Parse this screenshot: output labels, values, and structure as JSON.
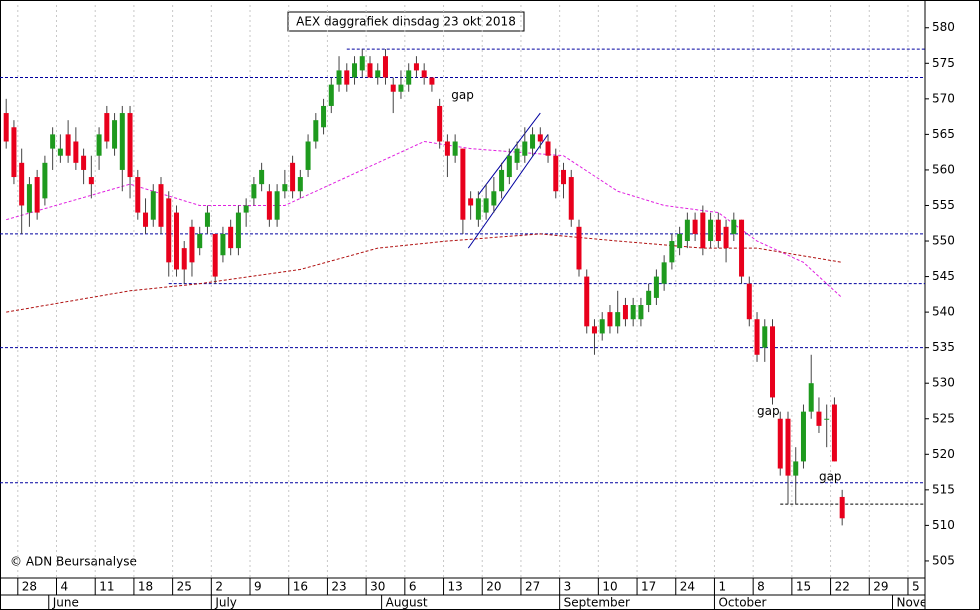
{
  "chart_data": {
    "type": "candlestick",
    "title": "AEX daggrafiek dinsdag 23 okt 2018",
    "credit": "© ADN Beursanalyse",
    "up_color": "#1e9a1e",
    "down_color": "#e8001c",
    "grid": true,
    "ylim": [
      502.6,
      583.2
    ],
    "yticks": [
      505,
      510,
      515,
      520,
      525,
      530,
      535,
      540,
      545,
      550,
      555,
      560,
      565,
      570,
      575,
      580
    ],
    "xlim": [
      -0.8,
      118.7
    ],
    "xticks": [
      {
        "value": 2,
        "label": "28"
      },
      {
        "value": 7,
        "label": "4"
      },
      {
        "value": 12,
        "label": "11"
      },
      {
        "value": 17,
        "label": "18"
      },
      {
        "value": 22,
        "label": "25"
      },
      {
        "value": 27,
        "label": "2"
      },
      {
        "value": 32,
        "label": "9"
      },
      {
        "value": 37,
        "label": "16"
      },
      {
        "value": 42,
        "label": "23"
      },
      {
        "value": 47,
        "label": "30"
      },
      {
        "value": 52,
        "label": "6"
      },
      {
        "value": 57,
        "label": "13"
      },
      {
        "value": 62,
        "label": "20"
      },
      {
        "value": 67,
        "label": "27"
      },
      {
        "value": 72,
        "label": "3"
      },
      {
        "value": 77,
        "label": "10"
      },
      {
        "value": 82,
        "label": "17"
      },
      {
        "value": 87,
        "label": "24"
      },
      {
        "value": 92,
        "label": "1"
      },
      {
        "value": 97,
        "label": "8"
      },
      {
        "value": 102,
        "label": "15"
      },
      {
        "value": 107,
        "label": "22"
      },
      {
        "value": 112,
        "label": "29"
      },
      {
        "value": 117,
        "label": "5"
      }
    ],
    "months": [
      {
        "value": 6,
        "label": "June"
      },
      {
        "value": 27,
        "label": "July"
      },
      {
        "value": 49,
        "label": "August"
      },
      {
        "value": 72,
        "label": "September"
      },
      {
        "value": 92,
        "label": "October"
      },
      {
        "value": 115,
        "label": "November"
      }
    ],
    "candles": [
      [
        568,
        570,
        563,
        564
      ],
      [
        566,
        567,
        558,
        559
      ],
      [
        561,
        563,
        551,
        555
      ],
      [
        554,
        559,
        552,
        558
      ],
      [
        559,
        560,
        553,
        554
      ],
      [
        556,
        562,
        555,
        561
      ],
      [
        563,
        566,
        560,
        565
      ],
      [
        562,
        565,
        561,
        563
      ],
      [
        565,
        567,
        561,
        562
      ],
      [
        564,
        566,
        560,
        561
      ],
      [
        562,
        563,
        558,
        560
      ],
      [
        559,
        562,
        556,
        558
      ],
      [
        562,
        566,
        560,
        565
      ],
      [
        568,
        569,
        563,
        564
      ],
      [
        563,
        568,
        562,
        567
      ],
      [
        560,
        569,
        557,
        568
      ],
      [
        568,
        569,
        556,
        559
      ],
      [
        559,
        560,
        553,
        554
      ],
      [
        554,
        556,
        551,
        552
      ],
      [
        553,
        558,
        552,
        557
      ],
      [
        558,
        559,
        551,
        552
      ],
      [
        556,
        557,
        545,
        547
      ],
      [
        554,
        555,
        545,
        546
      ],
      [
        549,
        550,
        544,
        546
      ],
      [
        552,
        553,
        545,
        547
      ],
      [
        549,
        552,
        548,
        551
      ],
      [
        552,
        555,
        551,
        554
      ],
      [
        551,
        551,
        544,
        545
      ],
      [
        548,
        552,
        547,
        551
      ],
      [
        552,
        553,
        548,
        549
      ],
      [
        549,
        555,
        548,
        554
      ],
      [
        554,
        556,
        552,
        555
      ],
      [
        556,
        559,
        555,
        558
      ],
      [
        558,
        561,
        557,
        560
      ],
      [
        557,
        558,
        552,
        553
      ],
      [
        553,
        558,
        552,
        557
      ],
      [
        557,
        560,
        556,
        558
      ],
      [
        561,
        562,
        556,
        557
      ],
      [
        557,
        560,
        556,
        559
      ],
      [
        560,
        565,
        559,
        564
      ],
      [
        564,
        568,
        563,
        567
      ],
      [
        566,
        570,
        565,
        569
      ],
      [
        569,
        573,
        568,
        572
      ],
      [
        572,
        576,
        571,
        574
      ],
      [
        574,
        575,
        571,
        572
      ],
      [
        573,
        576,
        572,
        575
      ],
      [
        574,
        577,
        573,
        576
      ],
      [
        575,
        576,
        573,
        573
      ],
      [
        573,
        575,
        572,
        574
      ],
      [
        576,
        577,
        572,
        573
      ],
      [
        572,
        573,
        568,
        571
      ],
      [
        571,
        574,
        570,
        572
      ],
      [
        572,
        575,
        571,
        574
      ],
      [
        575,
        576,
        573,
        574
      ],
      [
        574,
        575,
        572,
        573
      ],
      [
        573,
        573,
        571,
        572
      ],
      [
        569,
        570,
        563,
        564
      ],
      [
        564,
        565,
        559,
        562
      ],
      [
        562,
        565,
        561,
        564
      ],
      [
        563,
        563,
        551,
        553
      ],
      [
        556,
        557,
        553,
        555
      ],
      [
        553,
        557,
        552,
        556
      ],
      [
        554,
        558,
        553,
        556
      ],
      [
        555,
        559,
        554,
        557
      ],
      [
        557,
        561,
        556,
        560
      ],
      [
        559,
        563,
        558,
        562
      ],
      [
        561,
        564,
        560,
        563
      ],
      [
        562,
        566,
        561,
        564
      ],
      [
        563,
        566,
        562,
        565
      ],
      [
        565,
        566,
        563,
        564
      ],
      [
        564,
        565,
        561,
        562
      ],
      [
        562,
        563,
        556,
        557
      ],
      [
        560,
        561,
        556,
        558
      ],
      [
        559,
        560,
        552,
        553
      ],
      [
        552,
        553,
        545,
        546
      ],
      [
        545,
        546,
        537,
        538
      ],
      [
        538,
        539,
        534,
        537
      ],
      [
        537,
        540,
        536,
        539
      ],
      [
        540,
        541,
        537,
        538
      ],
      [
        538,
        543,
        537,
        540
      ],
      [
        541,
        542,
        538,
        539
      ],
      [
        539,
        542,
        538,
        541
      ],
      [
        539,
        542,
        538,
        541
      ],
      [
        541,
        544,
        540,
        543
      ],
      [
        542,
        546,
        541,
        545
      ],
      [
        544,
        548,
        543,
        547
      ],
      [
        547,
        551,
        546,
        550
      ],
      [
        549,
        552,
        548,
        551
      ],
      [
        550,
        554,
        549,
        553
      ],
      [
        553,
        554,
        550,
        551
      ],
      [
        554,
        555,
        548,
        549
      ],
      [
        550,
        554,
        549,
        553
      ],
      [
        553,
        554,
        549,
        550
      ],
      [
        552,
        553,
        547,
        549
      ],
      [
        551,
        554,
        550,
        553
      ],
      [
        553,
        553,
        544,
        545
      ],
      [
        544,
        545,
        538,
        539
      ],
      [
        539,
        540,
        533,
        534
      ],
      [
        535,
        539,
        533,
        538
      ],
      [
        538,
        539,
        527,
        528
      ],
      [
        525,
        526,
        517,
        518
      ],
      [
        525,
        526,
        513,
        517
      ],
      [
        517,
        521,
        513,
        519
      ],
      [
        519,
        527,
        518,
        526
      ],
      [
        526,
        534,
        525,
        530
      ],
      [
        526,
        528,
        523,
        524
      ],
      [
        525,
        527,
        521,
        525
      ],
      [
        527,
        528,
        519,
        519
      ],
      [
        514,
        515,
        510,
        511
      ]
    ],
    "series": [
      {
        "color": "#e020e0",
        "x": [
          0,
          16,
          25,
          36,
          42,
          54,
          60,
          72,
          79,
          85,
          92,
          97,
          103,
          108
        ],
        "values": [
          553,
          558,
          555,
          555,
          558,
          564,
          563,
          562,
          557,
          555,
          554,
          550,
          547,
          542
        ]
      },
      {
        "color": "#b01010",
        "x": [
          0,
          16,
          25,
          38,
          48,
          57,
          69,
          79,
          90,
          97,
          108
        ],
        "values": [
          540,
          543,
          544,
          546,
          549,
          550,
          551,
          550,
          549,
          549,
          547
        ]
      }
    ],
    "levels": [
      {
        "value": 577,
        "from": 44,
        "color": "#0000a0"
      },
      {
        "value": 573,
        "from": -0.8,
        "color": "#0000a0"
      },
      {
        "value": 551,
        "from": -0.8,
        "color": "#0000a0"
      },
      {
        "value": 544,
        "from": 21,
        "color": "#0000a0"
      },
      {
        "value": 535,
        "from": -0.8,
        "color": "#0000a0"
      },
      {
        "value": 516,
        "from": -0.8,
        "color": "#0000a0"
      },
      {
        "value": 513,
        "from": 100,
        "color": "#000000"
      }
    ],
    "trendlines": [
      {
        "x": [
          61,
          69
        ],
        "y": [
          556.5,
          568
        ],
        "color": "#0000a0"
      },
      {
        "x": [
          59.7,
          70
        ],
        "y": [
          549,
          565
        ],
        "color": "#0000a0"
      }
    ],
    "annotations": [
      {
        "text": "gap",
        "x": 57.5,
        "y": 570.5,
        "color": "#000000"
      },
      {
        "text": "gap",
        "x": 97,
        "y": 526,
        "color": "#b0b0b0"
      },
      {
        "text": "gap",
        "x": 105,
        "y": 516.8,
        "color": "#000000"
      }
    ]
  }
}
